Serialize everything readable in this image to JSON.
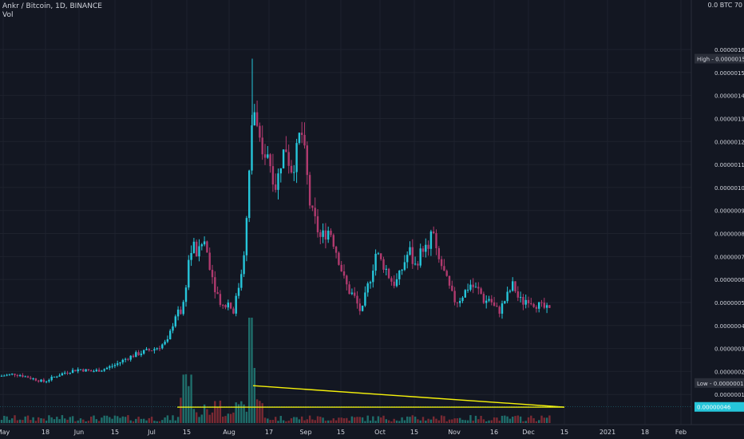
{
  "header": {
    "symbol_line": "Ankr / Bitcoin, 1D, BINANCE",
    "volume_label": "Vol"
  },
  "corner_label": "0.0 BTC 70",
  "price_tags": {
    "high": "High - 0.00000156",
    "current": "0.00000046",
    "low": "Low - 0.00000015"
  },
  "colors": {
    "background": "#131722",
    "grid": "#1e222d",
    "up": "#26c6da",
    "down": "#b03a6e",
    "volume_up": "#1f6e6b",
    "volume_down": "#7a2a33",
    "trendline": "#f5f10a",
    "axis_text": "#d1d4dc",
    "tag_bg": "#2a2e39",
    "current_tag_bg": "#26c6da"
  },
  "chart_data": {
    "type": "candlestick",
    "title": "Ankr / Bitcoin, 1D, BINANCE",
    "y_unit": "BTC",
    "ylim": [
      5e-08,
      1.65e-06
    ],
    "y_ticks": [
      "0.00000160",
      "0.00000150",
      "0.00000140",
      "0.00000130",
      "0.00000120",
      "0.00000110",
      "0.00000100",
      "0.00000090",
      "0.00000080",
      "0.00000070",
      "0.00000060",
      "0.00000050",
      "0.00000040",
      "0.00000030",
      "0.00000020",
      "0.00000010"
    ],
    "x_ticks": [
      "May",
      "18",
      "Jun",
      "15",
      "Jul",
      "15",
      "Aug",
      "17",
      "Sep",
      "15",
      "Oct",
      "15",
      "Nov",
      "16",
      "Dec",
      "15",
      "2021",
      "18",
      "Feb"
    ],
    "high": 1.56e-06,
    "low": 1.5e-07,
    "last": 4.6e-07,
    "grid": true,
    "descending_triangle": {
      "resistance": [
        {
          "date": "2020-08-10",
          "price": 1.38e-07
        },
        {
          "date": "2020-12-15",
          "price": 4.5e-08
        }
      ],
      "support": [
        {
          "date": "2020-07-08",
          "price": 4.5e-08
        },
        {
          "date": "2020-12-15",
          "price": 4.5e-08
        }
      ]
    },
    "price_path": [
      [
        0,
        1.8e-07
      ],
      [
        20,
        1.9e-07
      ],
      [
        40,
        1.7e-07
      ],
      [
        55,
        1.55e-07
      ],
      [
        70,
        1.8e-07
      ],
      [
        85,
        2e-07
      ],
      [
        100,
        2.1e-07
      ],
      [
        115,
        2e-07
      ],
      [
        130,
        2.1e-07
      ],
      [
        145,
        2.3e-07
      ],
      [
        160,
        2.6e-07
      ],
      [
        175,
        2.8e-07
      ],
      [
        195,
        3e-07
      ],
      [
        210,
        3.3e-07
      ],
      [
        220,
        4.5e-07
      ],
      [
        228,
        4.6e-07
      ],
      [
        232,
        5.5e-07
      ],
      [
        236,
        6.8e-07
      ],
      [
        242,
        7.5e-07
      ],
      [
        248,
        7e-07
      ],
      [
        255,
        7.8e-07
      ],
      [
        262,
        6.8e-07
      ],
      [
        268,
        5.8e-07
      ],
      [
        274,
        5.2e-07
      ],
      [
        280,
        4.8e-07
      ],
      [
        286,
        5e-07
      ],
      [
        292,
        4.6e-07
      ],
      [
        298,
        5.5e-07
      ],
      [
        303,
        6.5e-07
      ],
      [
        308,
        8e-07
      ],
      [
        313,
        1.1e-06
      ],
      [
        317,
        1.38e-06
      ],
      [
        322,
        1.25e-06
      ],
      [
        328,
        1.12e-06
      ],
      [
        334,
        1.18e-06
      ],
      [
        340,
        1.08e-06
      ],
      [
        346,
        1e-06
      ],
      [
        352,
        1.12e-06
      ],
      [
        358,
        1.18e-06
      ],
      [
        364,
        1.08e-06
      ],
      [
        370,
        1.12e-06
      ],
      [
        377,
        1.26e-06
      ],
      [
        383,
        1.1e-06
      ],
      [
        389,
        9e-07
      ],
      [
        395,
        8.5e-07
      ],
      [
        401,
        7.8e-07
      ],
      [
        407,
        8e-07
      ],
      [
        413,
        8.2e-07
      ],
      [
        419,
        7.5e-07
      ],
      [
        425,
        6.8e-07
      ],
      [
        431,
        6e-07
      ],
      [
        437,
        5.5e-07
      ],
      [
        443,
        5.3e-07
      ],
      [
        449,
        4.8e-07
      ],
      [
        453,
        4.5e-07
      ],
      [
        459,
        5.5e-07
      ],
      [
        465,
        6.2e-07
      ],
      [
        471,
        7.2e-07
      ],
      [
        477,
        6.8e-07
      ],
      [
        483,
        6.5e-07
      ],
      [
        489,
        6e-07
      ],
      [
        495,
        5.8e-07
      ],
      [
        501,
        6.2e-07
      ],
      [
        507,
        6.8e-07
      ],
      [
        513,
        7.3e-07
      ],
      [
        519,
        6.5e-07
      ],
      [
        525,
        7e-07
      ],
      [
        531,
        7.5e-07
      ],
      [
        537,
        7.1e-07
      ],
      [
        541,
        8.4e-07
      ],
      [
        547,
        7e-07
      ],
      [
        553,
        6.6e-07
      ],
      [
        559,
        6e-07
      ],
      [
        565,
        5.4e-07
      ],
      [
        571,
        5e-07
      ],
      [
        577,
        5.2e-07
      ],
      [
        583,
        5.5e-07
      ],
      [
        589,
        5.8e-07
      ],
      [
        595,
        5.6e-07
      ],
      [
        601,
        5.5e-07
      ],
      [
        607,
        5e-07
      ],
      [
        613,
        5.2e-07
      ],
      [
        619,
        4.8e-07
      ],
      [
        625,
        4.6e-07
      ],
      [
        631,
        5e-07
      ],
      [
        637,
        5.4e-07
      ],
      [
        643,
        5.8e-07
      ],
      [
        649,
        5.2e-07
      ],
      [
        655,
        5e-07
      ],
      [
        661,
        5.2e-07
      ],
      [
        667,
        5e-07
      ],
      [
        673,
        4.9e-07
      ],
      [
        679,
        4.8e-07
      ],
      [
        685,
        4.7e-07
      ],
      [
        690,
        4.6e-07
      ]
    ]
  }
}
